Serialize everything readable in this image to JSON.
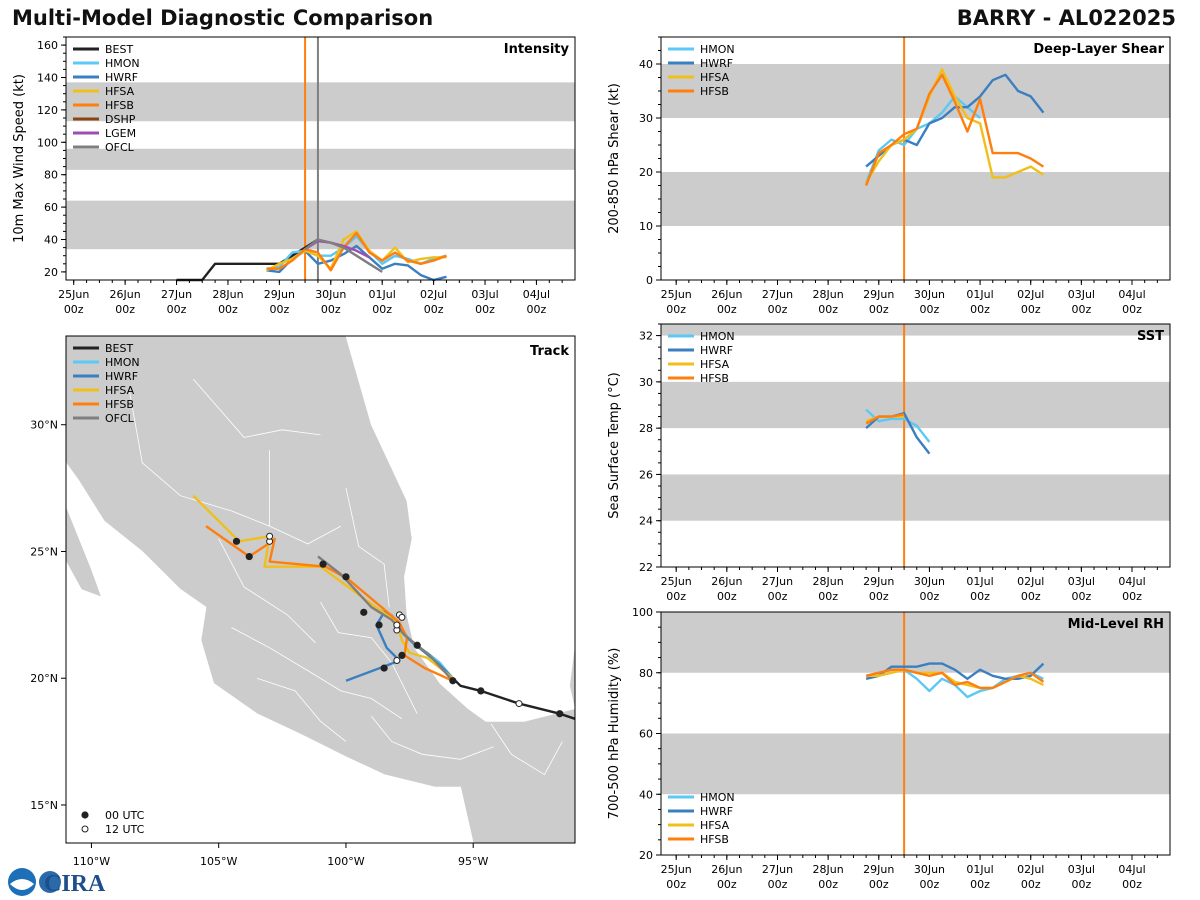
{
  "header": {
    "title_left": "Multi-Model Diagnostic Comparison",
    "title_right": "BARRY - AL022025"
  },
  "logo": {
    "text": "CIRA",
    "icon": "noaa-cira-logo"
  },
  "colors": {
    "BEST": "#222222",
    "HMON": "#5bc8f5",
    "HWRF": "#3a7fc1",
    "HFSA": "#f0bf1a",
    "HFSB": "#ff7f0e",
    "DSHP": "#8b4513",
    "LGEM": "#9b4fb5",
    "OFCL": "#7f7f7f",
    "band": "#cccccc",
    "vline_orange": "#ff7f0e",
    "vline_gray": "#7f7f7f"
  },
  "time_axis": {
    "tick_days": [
      0,
      1,
      2,
      3,
      4,
      5,
      6,
      7,
      8,
      9
    ],
    "tick_top": [
      "25Jun",
      "26Jun",
      "27Jun",
      "28Jun",
      "29Jun",
      "30Jun",
      "01Jul",
      "02Jul",
      "03Jul",
      "04Jul"
    ],
    "tick_bottom": [
      "00z",
      "00z",
      "00z",
      "00z",
      "00z",
      "00z",
      "00z",
      "00z",
      "00z",
      "00z"
    ]
  },
  "chart_data": [
    {
      "id": "intensity",
      "type": "line",
      "title": "Intensity",
      "ylabel": "10m Max Wind Speed (kt)",
      "xlabel": "",
      "ylim": [
        15,
        165
      ],
      "xlim": [
        -0.15,
        9.75
      ],
      "yticks": [
        20,
        40,
        60,
        80,
        100,
        120,
        140,
        160
      ],
      "bands": [
        [
          34,
          64
        ],
        [
          83,
          96
        ],
        [
          113,
          137
        ]
      ],
      "vlines": [
        {
          "x": 4.5,
          "color": "vline_orange"
        },
        {
          "x": 4.75,
          "color": "vline_gray"
        }
      ],
      "legend": "top-left",
      "legend_labels": [
        "BEST",
        "HMON",
        "HWRF",
        "HFSA",
        "HFSB",
        "DSHP",
        "LGEM",
        "OFCL"
      ],
      "series": [
        {
          "name": "BEST",
          "x": [
            2,
            2.5,
            2.75,
            3,
            3.5,
            4,
            4.25,
            4.5,
            4.75
          ],
          "y": [
            15,
            15,
            25,
            25,
            25,
            25,
            30,
            35,
            40
          ]
        },
        {
          "name": "HMON",
          "x": [
            3.75,
            4,
            4.25,
            4.5,
            4.75,
            5,
            5.25,
            5.5,
            5.75,
            6,
            6.25,
            6.5,
            6.75,
            7,
            7.25
          ],
          "y": [
            22,
            23,
            32,
            33,
            30,
            30,
            35,
            42,
            33,
            25,
            30,
            28,
            25,
            28,
            30
          ]
        },
        {
          "name": "HWRF",
          "x": [
            3.75,
            4,
            4.25,
            4.5,
            4.75,
            5,
            5.25,
            5.5,
            5.75,
            6,
            6.25,
            6.5,
            6.75,
            7,
            7.25
          ],
          "y": [
            21,
            20,
            28,
            33,
            25,
            27,
            31,
            36,
            29,
            22,
            25,
            24,
            18,
            15,
            17
          ]
        },
        {
          "name": "HFSA",
          "x": [
            3.75,
            4,
            4.25,
            4.5,
            4.75,
            5,
            5.25,
            5.5,
            5.75,
            6,
            6.25,
            6.5,
            6.75,
            7,
            7.25
          ],
          "y": [
            21,
            25,
            28,
            33,
            30,
            22,
            40,
            45,
            33,
            27,
            35,
            26,
            28,
            29,
            29
          ]
        },
        {
          "name": "HFSB",
          "x": [
            3.75,
            4,
            4.25,
            4.5,
            4.75,
            5,
            5.25,
            5.5,
            5.75,
            6,
            6.25,
            6.5,
            6.75,
            7,
            7.25
          ],
          "y": [
            22,
            22,
            27,
            34,
            32,
            21,
            35,
            44,
            32,
            27,
            32,
            27,
            25,
            27,
            30
          ]
        },
        {
          "name": "LGEM",
          "x": [
            4.5,
            4.75,
            5,
            5.25,
            5.5,
            5.75
          ],
          "y": [
            34,
            39,
            38,
            36,
            33,
            29
          ]
        },
        {
          "name": "OFCL",
          "x": [
            4.5,
            4.75,
            5,
            5.25,
            5.5,
            5.75,
            6
          ],
          "y": [
            34,
            40,
            38,
            35,
            30,
            25,
            20
          ]
        }
      ]
    },
    {
      "id": "shear",
      "type": "line",
      "title": "Deep-Layer Shear",
      "ylabel": "200-850 hPa Shear (kt)",
      "xlabel": "",
      "ylim": [
        0,
        45
      ],
      "xlim": [
        -0.3,
        9.75
      ],
      "yticks": [
        0,
        10,
        20,
        30,
        40
      ],
      "bands": [
        [
          10,
          20
        ],
        [
          30,
          40
        ]
      ],
      "vlines": [
        {
          "x": 4.5,
          "color": "vline_orange"
        }
      ],
      "legend": "top-left",
      "legend_labels": [
        "HMON",
        "HWRF",
        "HFSA",
        "HFSB"
      ],
      "series": [
        {
          "name": "HMON",
          "x": [
            3.75,
            4,
            4.25,
            4.5,
            4.75,
            5,
            5.25,
            5.5,
            5.75,
            6
          ],
          "y": [
            18,
            24,
            26,
            25,
            28,
            29,
            31,
            34,
            32,
            30
          ]
        },
        {
          "name": "HWRF",
          "x": [
            3.75,
            4,
            4.25,
            4.5,
            4.75,
            5,
            5.25,
            5.5,
            5.75,
            6,
            6.25,
            6.5,
            6.75,
            7,
            7.25
          ],
          "y": [
            21,
            23,
            25,
            26,
            25,
            29,
            30,
            32,
            32,
            34,
            37,
            38,
            35,
            34,
            31
          ]
        },
        {
          "name": "HFSA",
          "x": [
            3.75,
            4,
            4.25,
            4.5,
            4.75,
            5,
            5.25,
            5.5,
            5.75,
            6,
            6.25,
            6.5,
            6.75,
            7,
            7.25
          ],
          "y": [
            18,
            22,
            25,
            26,
            28,
            34,
            39,
            34,
            30,
            29,
            19,
            19,
            20,
            21,
            19.5
          ]
        },
        {
          "name": "HFSB",
          "x": [
            3.75,
            4,
            4.25,
            4.5,
            4.75,
            5,
            5.25,
            5.5,
            5.75,
            6,
            6.25,
            6.5,
            6.75,
            7,
            7.25
          ],
          "y": [
            17.5,
            23.5,
            25,
            27,
            28,
            34.5,
            38,
            33,
            27.5,
            33.5,
            23.5,
            23.5,
            23.5,
            22.5,
            21
          ]
        }
      ]
    },
    {
      "id": "sst",
      "type": "line",
      "title": "SST",
      "ylabel": "Sea Surface Temp (°C)",
      "xlabel": "",
      "ylim": [
        22,
        32.5
      ],
      "xlim": [
        -0.3,
        9.75
      ],
      "yticks": [
        22,
        24,
        26,
        28,
        30,
        32
      ],
      "bands": [
        [
          24,
          26
        ],
        [
          28,
          30
        ],
        [
          32,
          32.5
        ]
      ],
      "vlines": [
        {
          "x": 4.5,
          "color": "vline_orange"
        }
      ],
      "legend": "top-left",
      "legend_labels": [
        "HMON",
        "HWRF",
        "HFSA",
        "HFSB"
      ],
      "series": [
        {
          "name": "HMON",
          "x": [
            3.75,
            4,
            4.25,
            4.5,
            4.75,
            5
          ],
          "y": [
            28.8,
            28.3,
            28.4,
            28.4,
            28.1,
            27.4
          ]
        },
        {
          "name": "HWRF",
          "x": [
            3.75,
            4,
            4.25,
            4.5,
            4.75,
            5
          ],
          "y": [
            28,
            28.5,
            28.5,
            28.65,
            27.6,
            26.9
          ]
        },
        {
          "name": "HFSA",
          "x": [
            3.75,
            4,
            4.25,
            4.5
          ],
          "y": [
            28.3,
            28.5,
            28.5,
            28.5
          ]
        },
        {
          "name": "HFSB",
          "x": [
            3.75,
            4,
            4.25,
            4.5
          ],
          "y": [
            28.2,
            28.5,
            28.5,
            28.6
          ]
        }
      ]
    },
    {
      "id": "rh",
      "type": "line",
      "title": "Mid-Level RH",
      "ylabel": "700-500 hPa Humidity (%)",
      "xlabel": "",
      "ylim": [
        20,
        100
      ],
      "xlim": [
        -0.3,
        9.75
      ],
      "yticks": [
        20,
        40,
        60,
        80,
        100
      ],
      "bands": [
        [
          40,
          60
        ],
        [
          80,
          100
        ]
      ],
      "vlines": [
        {
          "x": 4.5,
          "color": "vline_orange"
        }
      ],
      "legend": "bottom-left",
      "legend_labels": [
        "HMON",
        "HWRF",
        "HFSA",
        "HFSB"
      ],
      "series": [
        {
          "name": "HMON",
          "x": [
            3.75,
            4,
            4.25,
            4.5,
            4.75,
            5,
            5.25,
            5.5,
            5.75,
            6,
            6.25,
            6.5,
            6.75,
            7,
            7.25
          ],
          "y": [
            79,
            80,
            81,
            81,
            78,
            74,
            78,
            76,
            72,
            74,
            75,
            78,
            79,
            80,
            78
          ]
        },
        {
          "name": "HWRF",
          "x": [
            3.75,
            4,
            4.25,
            4.5,
            4.75,
            5,
            5.25,
            5.5,
            5.75,
            6,
            6.25,
            6.5,
            6.75,
            7,
            7.25
          ],
          "y": [
            78,
            79,
            82,
            82,
            82,
            83,
            83,
            81,
            78,
            81,
            79,
            78,
            78,
            79,
            83
          ]
        },
        {
          "name": "HFSA",
          "x": [
            3.75,
            4,
            4.25,
            4.5,
            4.75,
            5,
            5.25,
            5.5,
            5.75,
            6,
            6.25,
            6.5,
            6.75,
            7,
            7.25
          ],
          "y": [
            79,
            79,
            80,
            81,
            80,
            80,
            80,
            77,
            76,
            75,
            75,
            77,
            79,
            78,
            76
          ]
        },
        {
          "name": "HFSB",
          "x": [
            3.75,
            4,
            4.25,
            4.5,
            4.75,
            5,
            5.25,
            5.5,
            5.75,
            6,
            6.25,
            6.5,
            6.75,
            7,
            7.25
          ],
          "y": [
            79,
            80,
            81,
            81,
            80,
            79,
            80,
            76,
            77,
            75,
            75,
            77,
            79,
            80,
            77
          ]
        }
      ]
    },
    {
      "id": "track",
      "type": "scatter",
      "title": "Track",
      "xlabel": "",
      "ylabel": "",
      "xlim": [
        -111,
        -91
      ],
      "ylim": [
        13.5,
        33.5
      ],
      "xticks": [
        -110,
        -105,
        -100,
        -95
      ],
      "xtick_labels": [
        "110°W",
        "105°W",
        "100°W",
        "95°W"
      ],
      "yticks": [
        15,
        20,
        25,
        30
      ],
      "ytick_labels": [
        "15°N",
        "20°N",
        "25°N",
        "30°N"
      ],
      "legend": "top-left",
      "legend_labels": [
        "BEST",
        "HMON",
        "HWRF",
        "HFSA",
        "HFSB",
        "OFCL"
      ],
      "marker_legend": [
        "00 UTC",
        "12 UTC"
      ],
      "series": [
        {
          "name": "BEST",
          "x": [
            -91,
            -91.6,
            -93.2,
            -94.7,
            -95.5,
            -95.8
          ],
          "y": [
            18.4,
            18.6,
            19.0,
            19.5,
            19.7,
            20.0
          ]
        },
        {
          "name": "HMON",
          "x": [
            -95.8,
            -96.3,
            -96.8,
            -97.3,
            -97.9,
            -98.2,
            -98.7
          ],
          "y": [
            20.0,
            20.6,
            21.0,
            21.3,
            22.0,
            22.5,
            22.7
          ]
        },
        {
          "name": "HWRF",
          "x": [
            -95.8,
            -96.4,
            -97.0,
            -97.6,
            -98.0,
            -98.5,
            -98.8,
            -98.4,
            -97.9,
            -98.4,
            -100.0
          ],
          "y": [
            20.0,
            20.6,
            21.1,
            21.6,
            22.2,
            22.6,
            22.1,
            21.2,
            20.7,
            20.5,
            19.9
          ]
        },
        {
          "name": "HFSA",
          "x": [
            -95.8,
            -96.8,
            -97.5,
            -97.8,
            -98.0,
            -101.0,
            -103.2,
            -103.0,
            -104.2,
            -106.0
          ],
          "y": [
            20.0,
            20.8,
            21.0,
            21.5,
            22.2,
            24.4,
            24.4,
            25.6,
            25.4,
            27.2
          ],
          "dashed": true
        },
        {
          "name": "HFSB",
          "x": [
            -95.8,
            -96.9,
            -97.7,
            -97.6,
            -97.9,
            -98.6,
            -99.9,
            -100.8,
            -103.0,
            -102.8,
            -103.2,
            -103.8,
            -105.5
          ],
          "y": [
            19.9,
            20.4,
            20.9,
            21.6,
            22.2,
            22.8,
            23.9,
            24.4,
            24.6,
            25.5,
            25.2,
            24.8,
            26.0
          ]
        },
        {
          "name": "OFCL",
          "x": [
            -95.8,
            -96.7,
            -97.7,
            -98.2,
            -99.0,
            -100.2,
            -101.1
          ],
          "y": [
            19.9,
            20.9,
            21.7,
            22.3,
            22.8,
            24.1,
            24.8
          ]
        }
      ],
      "points_00utc": {
        "x": [
          -91.6,
          -94.7,
          -95.8,
          -97.8,
          -98.5,
          -97.2,
          -98.7,
          -99.3,
          -100.0,
          -100.9,
          -103.8,
          -104.3
        ],
        "y": [
          18.6,
          19.5,
          19.9,
          20.9,
          20.4,
          21.3,
          22.1,
          22.6,
          24.0,
          24.5,
          24.8,
          25.4
        ]
      },
      "points_12utc": {
        "x": [
          -93.2,
          -98.0,
          -98.0,
          -98.0,
          -97.9,
          -97.8,
          -103.0,
          -103.0
        ],
        "y": [
          19.0,
          20.7,
          21.9,
          22.1,
          22.5,
          22.4,
          25.4,
          25.6
        ]
      }
    }
  ]
}
